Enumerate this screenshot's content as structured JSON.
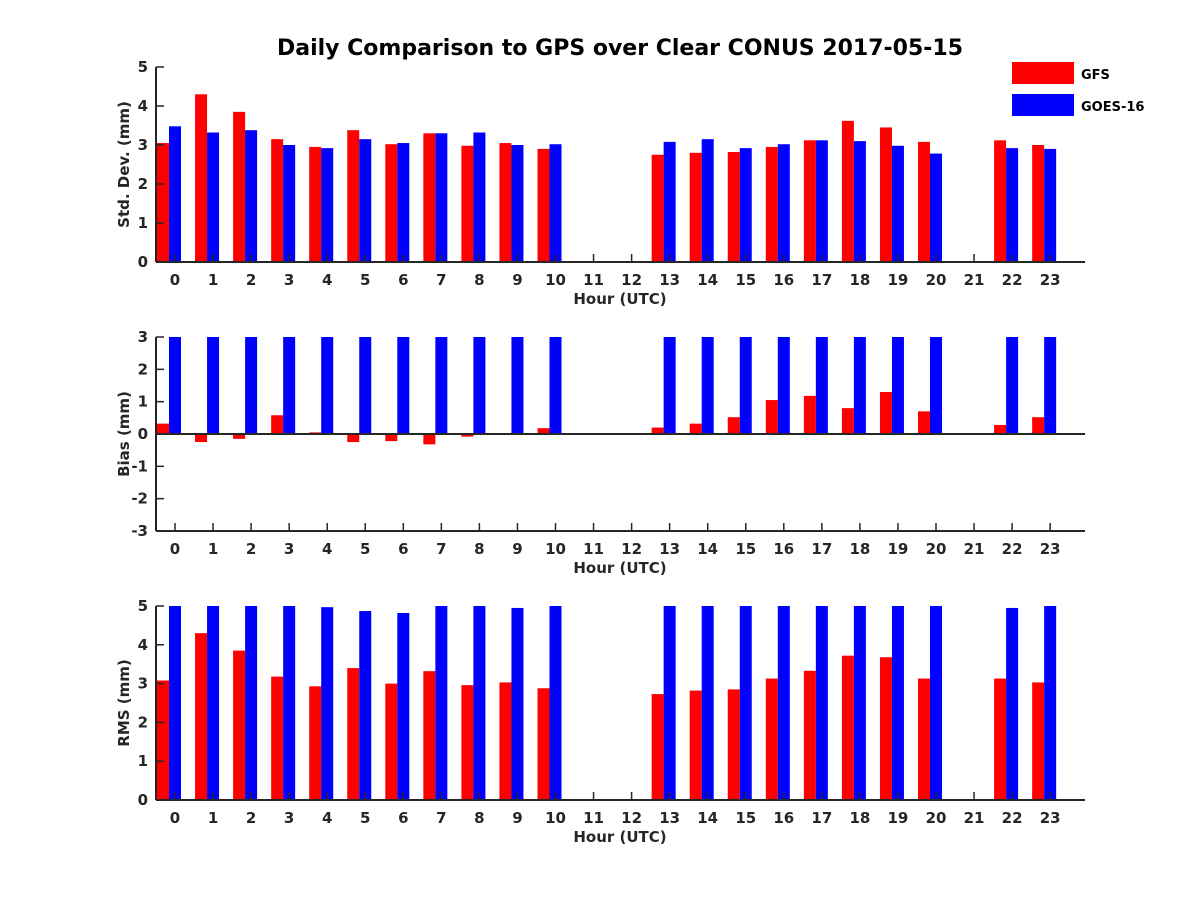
{
  "title": "Daily Comparison to GPS over Clear CONUS 2017-05-15",
  "legend": [
    {
      "name": "GFS",
      "color": "#ff0000"
    },
    {
      "name": "GOES-16",
      "color": "#0000ff"
    }
  ],
  "chart_data": [
    {
      "type": "bar",
      "title": "Daily Comparison to GPS over Clear CONUS 2017-05-15",
      "xlabel": "Hour (UTC)",
      "ylabel": "Std. Dev. (mm)",
      "ylim": [
        0,
        5
      ],
      "yticks": [
        "0",
        "1",
        "2",
        "3",
        "4",
        "5"
      ],
      "categories": [
        "0",
        "1",
        "2",
        "3",
        "4",
        "5",
        "6",
        "7",
        "8",
        "9",
        "10",
        "11",
        "12",
        "13",
        "14",
        "15",
        "16",
        "17",
        "18",
        "19",
        "20",
        "21",
        "22",
        "23"
      ],
      "series": [
        {
          "name": "GFS",
          "color": "#ff0000",
          "values": [
            3.05,
            4.3,
            3.85,
            3.15,
            2.95,
            3.38,
            3.02,
            3.3,
            2.98,
            3.05,
            2.9,
            null,
            null,
            2.75,
            2.8,
            2.82,
            2.95,
            3.12,
            3.62,
            3.45,
            3.08,
            null,
            3.12,
            3.0
          ]
        },
        {
          "name": "GOES-16",
          "color": "#0000ff",
          "values": [
            3.48,
            3.32,
            3.38,
            3.0,
            2.92,
            3.15,
            3.05,
            3.3,
            3.32,
            3.0,
            3.02,
            null,
            null,
            3.08,
            3.15,
            2.92,
            3.02,
            3.12,
            3.1,
            2.98,
            2.78,
            null,
            2.92,
            2.9
          ]
        }
      ]
    },
    {
      "type": "bar",
      "xlabel": "Hour (UTC)",
      "ylabel": "Bias (mm)",
      "ylim": [
        -3,
        3
      ],
      "yticks": [
        "-3",
        "-2",
        "-1",
        "0",
        "1",
        "2",
        "3"
      ],
      "categories": [
        "0",
        "1",
        "2",
        "3",
        "4",
        "5",
        "6",
        "7",
        "8",
        "9",
        "10",
        "11",
        "12",
        "13",
        "14",
        "15",
        "16",
        "17",
        "18",
        "19",
        "20",
        "21",
        "22",
        "23"
      ],
      "series": [
        {
          "name": "GFS",
          "color": "#ff0000",
          "values": [
            0.32,
            -0.25,
            -0.15,
            0.58,
            0.05,
            -0.25,
            -0.22,
            -0.32,
            -0.08,
            0.0,
            0.18,
            null,
            null,
            0.2,
            0.32,
            0.52,
            1.05,
            1.18,
            0.8,
            1.3,
            0.7,
            null,
            0.28,
            0.52
          ]
        },
        {
          "name": "GOES-16",
          "color": "#0000ff",
          "values": [
            3,
            3,
            3,
            3,
            3,
            3,
            3,
            3,
            3,
            3,
            3,
            null,
            null,
            3,
            3,
            3,
            3,
            3,
            3,
            3,
            3,
            null,
            3,
            3
          ]
        }
      ]
    },
    {
      "type": "bar",
      "xlabel": "Hour (UTC)",
      "ylabel": "RMS (mm)",
      "ylim": [
        0,
        5
      ],
      "yticks": [
        "0",
        "1",
        "2",
        "3",
        "4",
        "5"
      ],
      "categories": [
        "0",
        "1",
        "2",
        "3",
        "4",
        "5",
        "6",
        "7",
        "8",
        "9",
        "10",
        "11",
        "12",
        "13",
        "14",
        "15",
        "16",
        "17",
        "18",
        "19",
        "20",
        "21",
        "22",
        "23"
      ],
      "series": [
        {
          "name": "GFS",
          "color": "#ff0000",
          "values": [
            3.08,
            4.3,
            3.85,
            3.18,
            2.93,
            3.4,
            3.0,
            3.32,
            2.96,
            3.03,
            2.88,
            null,
            null,
            2.73,
            2.82,
            2.85,
            3.13,
            3.33,
            3.72,
            3.68,
            3.13,
            null,
            3.13,
            3.03
          ]
        },
        {
          "name": "GOES-16",
          "color": "#0000ff",
          "values": [
            5,
            5,
            5,
            5,
            4.97,
            4.87,
            4.82,
            5,
            5,
            4.95,
            5,
            null,
            null,
            5,
            5,
            5,
            5,
            5,
            5,
            5,
            5,
            null,
            4.95,
            5
          ]
        }
      ]
    }
  ]
}
